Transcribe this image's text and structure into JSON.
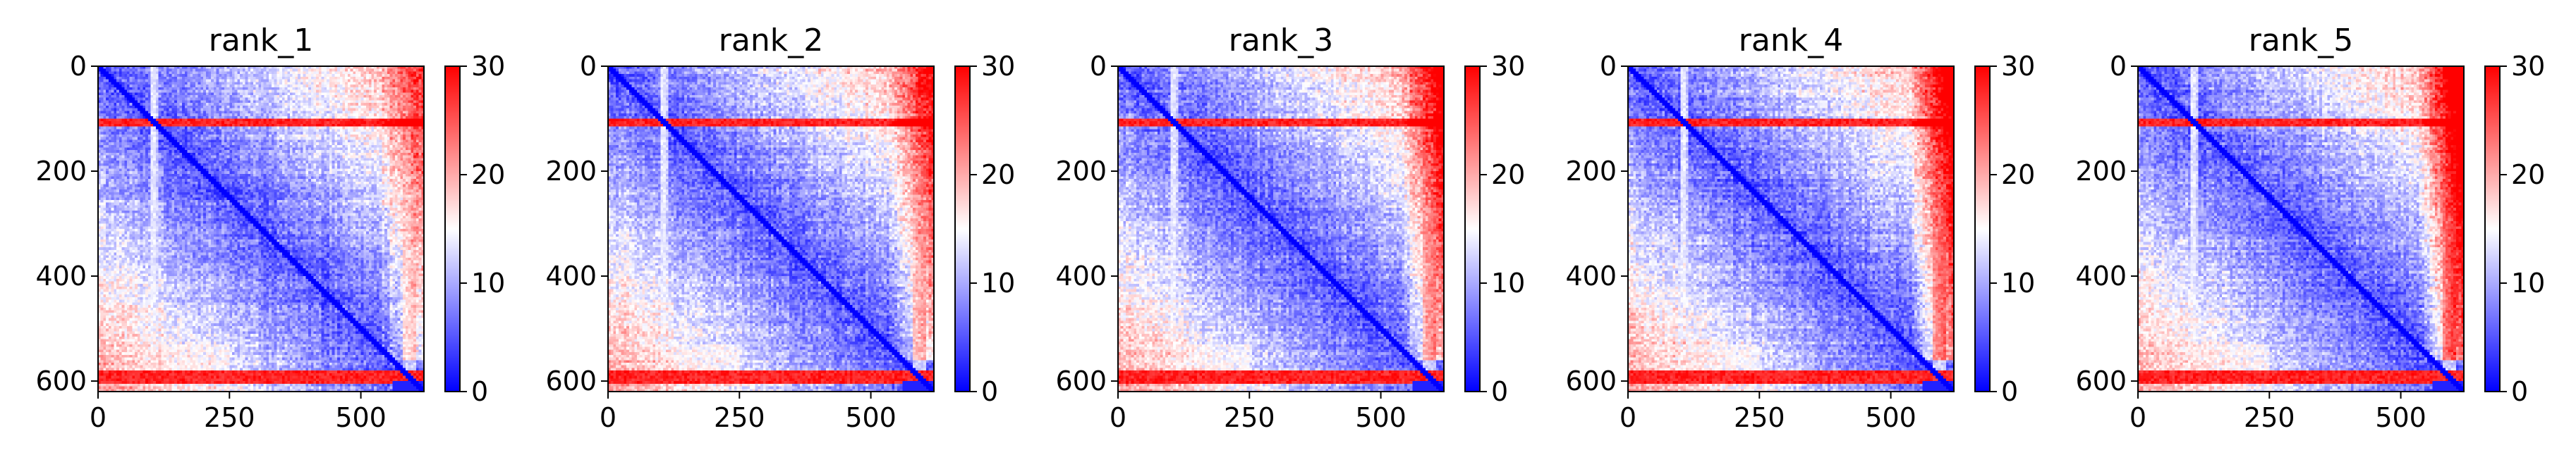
{
  "chart_data": [
    {
      "type": "heatmap",
      "title": "rank_1",
      "x_ticks": [
        "0",
        "250",
        "500"
      ],
      "x_tick_values": [
        0,
        250,
        500
      ],
      "y_ticks": [
        "0",
        "200",
        "400",
        "600"
      ],
      "y_tick_values": [
        0,
        200,
        400,
        600
      ],
      "xlim": [
        0,
        620
      ],
      "ylim": [
        620,
        0
      ],
      "colorbar": {
        "ticks": [
          "0",
          "10",
          "20",
          "30"
        ],
        "tick_values": [
          0,
          10,
          20,
          30
        ],
        "range": [
          0,
          30
        ],
        "colormap": "bwr"
      },
      "variant": 0
    },
    {
      "type": "heatmap",
      "title": "rank_2",
      "x_ticks": [
        "0",
        "250",
        "500"
      ],
      "x_tick_values": [
        0,
        250,
        500
      ],
      "y_ticks": [
        "0",
        "200",
        "400",
        "600"
      ],
      "y_tick_values": [
        0,
        200,
        400,
        600
      ],
      "xlim": [
        0,
        620
      ],
      "ylim": [
        620,
        0
      ],
      "colorbar": {
        "ticks": [
          "0",
          "10",
          "20",
          "30"
        ],
        "tick_values": [
          0,
          10,
          20,
          30
        ],
        "range": [
          0,
          30
        ],
        "colormap": "bwr"
      },
      "variant": 1
    },
    {
      "type": "heatmap",
      "title": "rank_3",
      "x_ticks": [
        "0",
        "250",
        "500"
      ],
      "x_tick_values": [
        0,
        250,
        500
      ],
      "y_ticks": [
        "0",
        "200",
        "400",
        "600"
      ],
      "y_tick_values": [
        0,
        200,
        400,
        600
      ],
      "xlim": [
        0,
        620
      ],
      "ylim": [
        620,
        0
      ],
      "colorbar": {
        "ticks": [
          "0",
          "10",
          "20",
          "30"
        ],
        "tick_values": [
          0,
          10,
          20,
          30
        ],
        "range": [
          0,
          30
        ],
        "colormap": "bwr"
      },
      "variant": 2
    },
    {
      "type": "heatmap",
      "title": "rank_4",
      "x_ticks": [
        "0",
        "250",
        "500"
      ],
      "x_tick_values": [
        0,
        250,
        500
      ],
      "y_ticks": [
        "0",
        "200",
        "400",
        "600"
      ],
      "y_tick_values": [
        0,
        200,
        400,
        600
      ],
      "xlim": [
        0,
        620
      ],
      "ylim": [
        620,
        0
      ],
      "colorbar": {
        "ticks": [
          "0",
          "10",
          "20",
          "30"
        ],
        "tick_values": [
          0,
          10,
          20,
          30
        ],
        "range": [
          0,
          30
        ],
        "colormap": "bwr"
      },
      "variant": 3
    },
    {
      "type": "heatmap",
      "title": "rank_5",
      "x_ticks": [
        "0",
        "250",
        "500"
      ],
      "x_tick_values": [
        0,
        250,
        500
      ],
      "y_ticks": [
        "0",
        "200",
        "400",
        "600"
      ],
      "y_tick_values": [
        0,
        200,
        400,
        600
      ],
      "xlim": [
        0,
        620
      ],
      "ylim": [
        620,
        0
      ],
      "colorbar": {
        "ticks": [
          "0",
          "10",
          "20",
          "30"
        ],
        "tick_values": [
          0,
          10,
          20,
          30
        ],
        "range": [
          0,
          30
        ],
        "colormap": "bwr"
      },
      "variant": 4
    }
  ]
}
